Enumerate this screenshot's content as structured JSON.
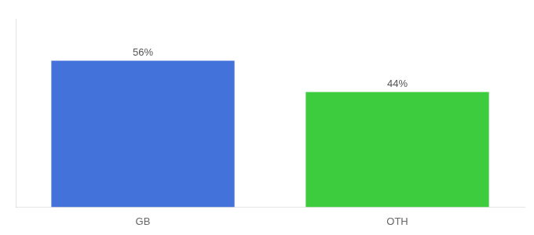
{
  "chart_data": {
    "type": "bar",
    "categories": [
      "GB",
      "OTH"
    ],
    "values": [
      56,
      44
    ],
    "value_labels": [
      "56%",
      "44%"
    ],
    "colors": [
      "#4472db",
      "#3dcc3d"
    ],
    "ylim": [
      0,
      72
    ],
    "grid": false,
    "data_labels": true,
    "tick_labels": "x"
  }
}
